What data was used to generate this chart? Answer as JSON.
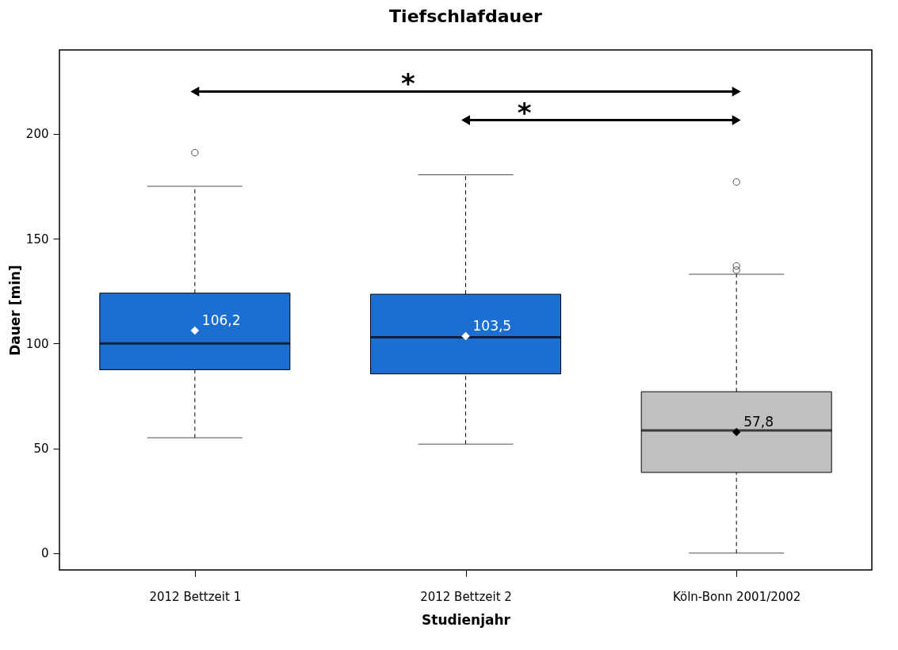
{
  "chart_data": {
    "type": "box",
    "title": "Tiefschlafdauer",
    "xlabel": "Studienjahr",
    "ylabel": "Dauer [min]",
    "categories": [
      "2012 Bettzeit 1",
      "2012 Bettzeit 2",
      "Köln-Bonn 2001/2002"
    ],
    "colors": [
      "#1c6fd0",
      "#1c6fd0",
      "#c0c0c0"
    ],
    "boxes": [
      {
        "low": 55,
        "q1": 87.5,
        "median": 100,
        "q3": 124,
        "high": 175,
        "mean": 106.2,
        "outliers": [
          191
        ]
      },
      {
        "low": 52,
        "q1": 85.5,
        "median": 103,
        "q3": 123.5,
        "high": 180.5,
        "mean": 103.5
      },
      {
        "low": 0,
        "q1": 38.5,
        "median": 58.5,
        "q3": 77,
        "high": 133,
        "mean": 57.8,
        "outliers": [
          177,
          137,
          135
        ]
      }
    ],
    "ylim": [
      -8,
      240
    ],
    "yticks": [
      0,
      50,
      100,
      150,
      200
    ],
    "grid": false,
    "annotations": [
      "106,2",
      "103,5",
      "57,8",
      "*",
      "*"
    ]
  }
}
